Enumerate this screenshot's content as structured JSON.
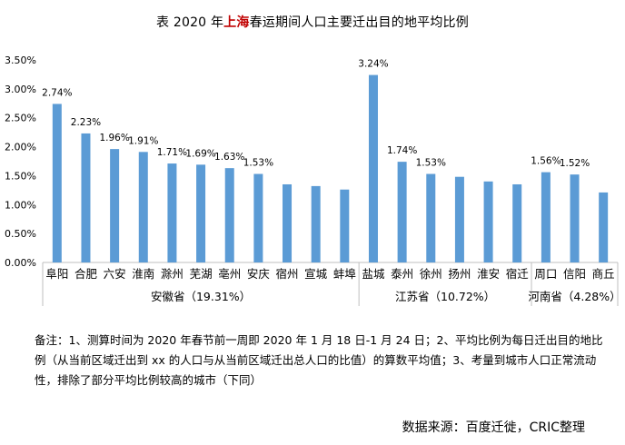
{
  "title": {
    "prefix": "表 2020 年",
    "highlight": "上海",
    "suffix": "春运期间人口主要迁出目的地平均比例"
  },
  "chart_data": {
    "type": "bar",
    "categories": [
      "阜阳",
      "合肥",
      "六安",
      "淮南",
      "滁州",
      "芜湖",
      "亳州",
      "安庆",
      "宿州",
      "宣城",
      "蚌埠",
      "盐城",
      "泰州",
      "徐州",
      "扬州",
      "淮安",
      "宿迁",
      "周口",
      "信阳",
      "商丘"
    ],
    "values": [
      2.74,
      2.23,
      1.96,
      1.91,
      1.71,
      1.69,
      1.63,
      1.53,
      1.35,
      1.32,
      1.26,
      3.24,
      1.74,
      1.53,
      1.48,
      1.4,
      1.35,
      1.56,
      1.52,
      1.21
    ],
    "data_labels": [
      "2.74%",
      "2.23%",
      "1.96%",
      "1.91%",
      "1.71%",
      "1.69%",
      "1.63%",
      "1.53%",
      null,
      null,
      null,
      "3.24%",
      "1.74%",
      "1.53%",
      null,
      null,
      null,
      "1.56%",
      "1.52%",
      null
    ],
    "groups": [
      {
        "label": "安徽省（19.31%）",
        "start": 0,
        "end": 10
      },
      {
        "label": "江苏省（10.72%）",
        "start": 11,
        "end": 16
      },
      {
        "label": "河南省（4.28%）",
        "start": 17,
        "end": 19
      }
    ],
    "y_ticks": [
      "0.00%",
      "0.50%",
      "1.00%",
      "1.50%",
      "2.00%",
      "2.50%",
      "3.00%",
      "3.50%"
    ],
    "ylim": [
      0,
      3.5
    ],
    "grid": false,
    "bar_color": "#5b9bd5"
  },
  "note": "备注：1、测算时间为 2020 年春节前一周即 2020 年 1 月 18 日-1 月 24 日；2、平均比例为每日迁出目的地比例（从当前区域迁出到 xx 的人口与从当前区域迁出总人口的比值）的算数平均值；3、考量到城市人口正常流动性，排除了部分平均比例较高的城市（下同）",
  "source": "数据来源：百度迁徙，CRIC整理"
}
